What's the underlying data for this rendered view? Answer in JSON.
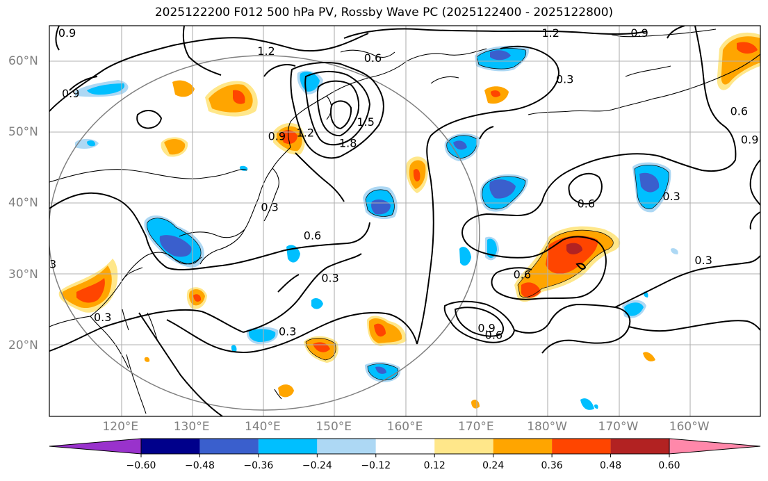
{
  "title": "2025122200 F012 500 hPa PV, Rossby Wave PC (2025122400 - 2025122800)",
  "map": {
    "extent": {
      "lon_min": 110,
      "lon_max": 210,
      "lat_min": 10,
      "lat_max": 65
    },
    "lon_ticks": [
      {
        "lon": 120,
        "label": "120°E"
      },
      {
        "lon": 130,
        "label": "130°E"
      },
      {
        "lon": 140,
        "label": "140°E"
      },
      {
        "lon": 150,
        "label": "150°E"
      },
      {
        "lon": 160,
        "label": "160°E"
      },
      {
        "lon": 170,
        "label": "170°E"
      },
      {
        "lon": 180,
        "label": "180°W"
      },
      {
        "lon": 190,
        "label": "170°W"
      },
      {
        "lon": 200,
        "label": "160°W"
      }
    ],
    "lat_ticks": [
      {
        "lat": 20,
        "label": "20°N"
      },
      {
        "lat": 30,
        "label": "30°N"
      },
      {
        "lat": 40,
        "label": "40°N"
      },
      {
        "lat": 50,
        "label": "50°N"
      },
      {
        "lat": 60,
        "label": "60°N"
      }
    ],
    "contour_labels": [
      {
        "text": "1.2",
        "lon": 140.5,
        "lat": 61.5
      },
      {
        "text": "0.6",
        "lon": 155.5,
        "lat": 60.5
      },
      {
        "text": "1.2",
        "lon": 180.5,
        "lat": 64
      },
      {
        "text": "0.9",
        "lon": 193,
        "lat": 64
      },
      {
        "text": "0.3",
        "lon": 182.5,
        "lat": 57.5
      },
      {
        "text": "0.9",
        "lon": 113,
        "lat": 55.5
      },
      {
        "text": "1.5",
        "lon": 154.5,
        "lat": 51.5
      },
      {
        "text": "1.8",
        "lon": 152,
        "lat": 48.5
      },
      {
        "text": "1.2",
        "lon": 146,
        "lat": 50
      },
      {
        "text": "0.9",
        "lon": 142,
        "lat": 49.5
      },
      {
        "text": "0.3",
        "lon": 141,
        "lat": 39.5
      },
      {
        "text": "0.6",
        "lon": 147,
        "lat": 35.5
      },
      {
        "text": "0.3",
        "lon": 149.5,
        "lat": 29.5
      },
      {
        "text": "0.3",
        "lon": 143.5,
        "lat": 22
      },
      {
        "text": "0.6",
        "lon": 185.5,
        "lat": 40
      },
      {
        "text": "0.3",
        "lon": 197.5,
        "lat": 41
      },
      {
        "text": "0.6",
        "lon": 176.5,
        "lat": 30
      },
      {
        "text": "0.3",
        "lon": 202,
        "lat": 32
      },
      {
        "text": "0.6",
        "lon": 172.5,
        "lat": 21.5
      },
      {
        "text": "0.9",
        "lon": 171.5,
        "lat": 22.5
      },
      {
        "text": "0.3",
        "lon": 117.5,
        "lat": 24
      },
      {
        "text": "0.6",
        "lon": 207,
        "lat": 53
      },
      {
        "text": "0.9",
        "lon": 208.5,
        "lat": 49
      },
      {
        "text": "3",
        "lon": 110.5,
        "lat": 31.5
      },
      {
        "text": "0.9",
        "lon": 112.5,
        "lat": 64
      }
    ],
    "colors": {
      "land_outline": "#000000",
      "grid": "#b0b0b0",
      "contour": "#000000",
      "circle": "#808080"
    }
  },
  "colorbar": {
    "ticks": [
      "−0.60",
      "−0.48",
      "−0.36",
      "−0.24",
      "−0.12",
      "0.12",
      "0.24",
      "0.36",
      "0.48",
      "0.60"
    ],
    "colors": [
      "#9932cc",
      "#00008b",
      "#3a5fcd",
      "#00bfff",
      "#add8f4",
      "#ffffff",
      "#ffe78a",
      "#ffa500",
      "#ff4500",
      "#b22222",
      "#ff88aa"
    ]
  }
}
